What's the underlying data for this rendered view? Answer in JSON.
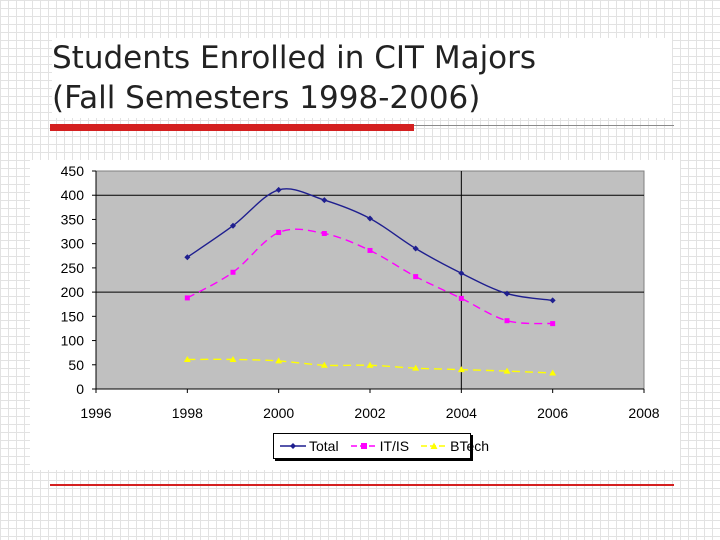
{
  "slide": {
    "title_line1": "Students Enrolled in CIT Majors",
    "title_line2": "(Fall Semesters 1998-2006)",
    "accent_color": "#d42020"
  },
  "chart_data": {
    "type": "line",
    "title": "",
    "xlabel": "",
    "ylabel": "",
    "xlim": [
      1996,
      2008
    ],
    "ylim": [
      0,
      450
    ],
    "x_ticks": [
      "1996",
      "1998",
      "2000",
      "2002",
      "2004",
      "2006",
      "2008"
    ],
    "y_ticks": [
      "450",
      "400",
      "350",
      "300",
      "250",
      "200",
      "150",
      "100",
      "50",
      "0"
    ],
    "grid": "horizontal major gridlines at 200 and 400; vertical gridline at 2004",
    "plot_background": "#c0c0c0",
    "legend_position": "bottom",
    "series": [
      {
        "name": "Total",
        "color": "#1f1f8f",
        "marker": "diamond",
        "line_style": "solid",
        "x": [
          1998,
          1999,
          2000,
          2001,
          2002,
          2003,
          2004,
          2005,
          2006
        ],
        "values": [
          272,
          337,
          411,
          390,
          352,
          290,
          239,
          197,
          183
        ]
      },
      {
        "name": "IT/IS",
        "color": "#ff00ff",
        "marker": "square",
        "line_style": "dashed",
        "x": [
          1998,
          1999,
          2000,
          2001,
          2002,
          2003,
          2004,
          2005,
          2006
        ],
        "values": [
          188,
          241,
          323,
          321,
          286,
          232,
          187,
          141,
          135
        ]
      },
      {
        "name": "BTech",
        "color": "#ffff00",
        "marker": "triangle",
        "line_style": "dashed",
        "x": [
          1998,
          1999,
          2000,
          2001,
          2002,
          2003,
          2004,
          2005,
          2006
        ],
        "values": [
          61,
          61,
          58,
          49,
          49,
          43,
          40,
          37,
          33
        ]
      }
    ]
  }
}
